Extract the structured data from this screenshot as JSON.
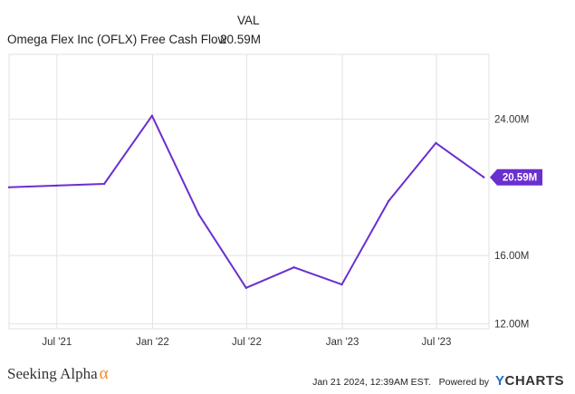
{
  "header": {
    "column_label": "VAL",
    "series_name": "Omega Flex Inc (OFLX) Free Cash Flow",
    "series_value": "20.59M"
  },
  "chart_data": {
    "type": "line",
    "series": [
      {
        "name": "Omega Flex Inc (OFLX) Free Cash Flow",
        "color": "#6a2fcf",
        "points": [
          {
            "x": "2021-03-31",
            "y": 20.0
          },
          {
            "x": "2021-06-30",
            "y": 20.1
          },
          {
            "x": "2021-09-30",
            "y": 20.2
          },
          {
            "x": "2021-12-31",
            "y": 24.2
          },
          {
            "x": "2022-03-31",
            "y": 18.4
          },
          {
            "x": "2022-06-30",
            "y": 14.1
          },
          {
            "x": "2022-09-30",
            "y": 15.3
          },
          {
            "x": "2022-12-31",
            "y": 14.3
          },
          {
            "x": "2023-03-31",
            "y": 19.2
          },
          {
            "x": "2023-06-30",
            "y": 22.6
          },
          {
            "x": "2023-09-30",
            "y": 20.59
          }
        ]
      }
    ],
    "x_ticks": [
      {
        "x": "2021-07-01",
        "label": "Jul '21"
      },
      {
        "x": "2022-01-01",
        "label": "Jan '22"
      },
      {
        "x": "2022-07-01",
        "label": "Jul '22"
      },
      {
        "x": "2023-01-01",
        "label": "Jan '23"
      },
      {
        "x": "2023-07-01",
        "label": "Jul '23"
      }
    ],
    "y_ticks": [
      {
        "value": 12,
        "label": "12.00M"
      },
      {
        "value": 16,
        "label": "16.00M"
      },
      {
        "value": 24,
        "label": "24.00M"
      }
    ],
    "last_value_label": "20.59M",
    "xlim": [
      "2021-03-31",
      "2023-10-10"
    ],
    "ylim": [
      11.7,
      27.8
    ],
    "grid": true,
    "legend": "top-left"
  },
  "footer": {
    "brand_text": "Seeking Alpha",
    "brand_symbol": "α",
    "timestamp": "Jan 21 2024, 12:39AM EST.",
    "powered_by": "Powered by",
    "ycharts_y": "Y",
    "ycharts_rest": "CHARTS"
  }
}
